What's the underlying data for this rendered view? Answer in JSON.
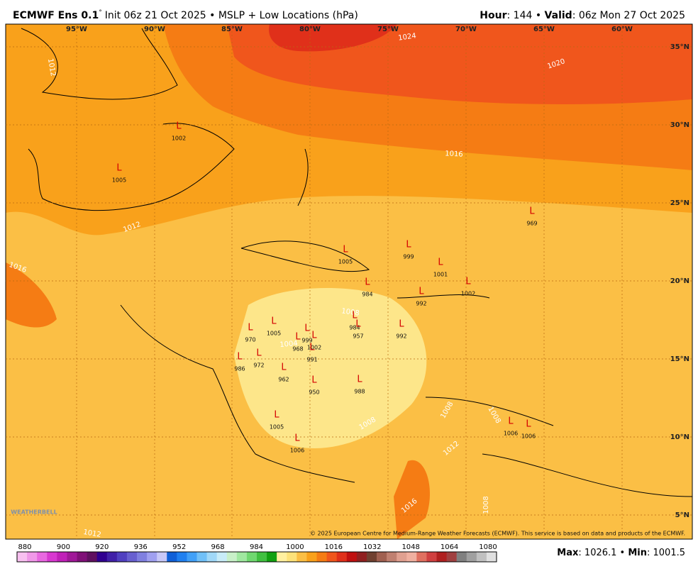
{
  "header": {
    "model": "ECMWF Ens 0.1",
    "degree": "°",
    "title": "Init 06z 21 Oct 2025 • MSLP + Low Locations (hPa)",
    "hour_label": "Hour",
    "hour": ": 144 • ",
    "valid_label": "Valid",
    "valid": ": 06z Mon 27 Oct 2025"
  },
  "map": {
    "lon_labels": [
      "95°W",
      "90°W",
      "85°W",
      "80°W",
      "75°W",
      "70°W",
      "65°W",
      "60°W"
    ],
    "lat_labels": [
      "35°N",
      "30°N",
      "25°N",
      "20°N",
      "15°N",
      "10°N",
      "5°N"
    ],
    "contour_labels": [
      1024,
      1020,
      1016,
      1012,
      1016,
      1008,
      1004,
      1008,
      1008,
      1008,
      1012,
      1016,
      1008,
      1012,
      1012
    ],
    "lows": [
      {
        "label": "L",
        "value": 1002
      },
      {
        "label": "L",
        "value": 1005
      },
      {
        "label": "L",
        "value": 969
      },
      {
        "label": "L",
        "value": 999
      },
      {
        "label": "L",
        "value": 1005
      },
      {
        "label": "L",
        "value": 1001
      },
      {
        "label": "L",
        "value": 1002
      },
      {
        "label": "L",
        "value": 984
      },
      {
        "label": "L",
        "value": 992
      },
      {
        "label": "L",
        "value": 984
      },
      {
        "label": "L",
        "value": 957
      },
      {
        "label": "L",
        "value": 992
      },
      {
        "label": "L",
        "value": 1005
      },
      {
        "label": "L",
        "value": 970
      },
      {
        "label": "L",
        "value": 999
      },
      {
        "label": "L",
        "value": 1002
      },
      {
        "label": "L",
        "value": 968
      },
      {
        "label": "L",
        "value": 950
      },
      {
        "label": "L",
        "value": 988
      },
      {
        "label": "L",
        "value": 1005
      },
      {
        "label": "L",
        "value": 1006
      },
      {
        "label": "L",
        "value": 1006
      },
      {
        "label": "L",
        "value": 1006
      },
      {
        "label": "L",
        "value": 986
      },
      {
        "label": "L",
        "value": 972
      },
      {
        "label": "L",
        "value": 991
      },
      {
        "label": "L",
        "value": 962
      }
    ],
    "copyright": "© 2025 European Centre for Medium-Range Weather Forecasts (ECMWF). This service is based on data and products of the ECMWF.",
    "logo": "WEATHERBELL"
  },
  "colorbar": {
    "ticks": [
      880,
      900,
      920,
      936,
      952,
      968,
      984,
      1000,
      1016,
      1032,
      1048,
      1064,
      1080
    ],
    "colors": [
      "#f8c0f0",
      "#f098e8",
      "#e868e0",
      "#d838d0",
      "#c020b8",
      "#a01898",
      "#801078",
      "#601060",
      "#300090",
      "#4020a8",
      "#5040c0",
      "#6860d0",
      "#8080e0",
      "#a0a0f0",
      "#c8c8f8",
      "#1060d8",
      "#2080f0",
      "#40a0f8",
      "#70c0f8",
      "#a0d8f8",
      "#c8ecf8",
      "#c8f0c8",
      "#a0e8a0",
      "#70d870",
      "#40c040",
      "#10a010",
      "#fff0a0",
      "#fde27a",
      "#fbbf45",
      "#f9a11b",
      "#f57c14",
      "#f0561c",
      "#e0301a",
      "#c01010",
      "#902020",
      "#704030",
      "#a06050",
      "#c08070",
      "#e0a090",
      "#f0b0a0",
      "#e07060",
      "#d04040",
      "#b02020",
      "#a04040",
      "#808080",
      "#a0a0a0",
      "#c0c0c0",
      "#e0e0e0"
    ]
  },
  "footer": {
    "max_label": "Max",
    "max": ": 1026.1 • ",
    "min_label": "Min",
    "min": ": 1001.5"
  }
}
